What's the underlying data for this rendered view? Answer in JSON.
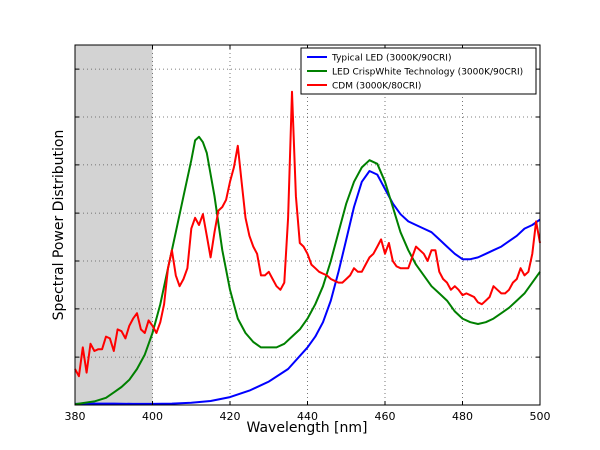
{
  "chart_data": {
    "type": "line",
    "title": "",
    "xlabel": "Wavelength [nm]",
    "ylabel": "Spectral Power Distribution",
    "xlim": [
      380,
      500
    ],
    "ylim": [
      0,
      1
    ],
    "x_ticks": [
      380,
      400,
      420,
      440,
      460,
      480,
      500
    ],
    "x_tick_labels": [
      "380",
      "400",
      "420",
      "440",
      "460",
      "480",
      "500"
    ],
    "y_gridlines": [
      0.133,
      0.267,
      0.4,
      0.533,
      0.667,
      0.8,
      0.933
    ],
    "grid": true,
    "legend_position": "top-right",
    "shaded_region": {
      "x_from": 380,
      "x_to": 400,
      "color": "#d3d3d3"
    },
    "series": [
      {
        "name": "Typical LED (3000K/90CRI)",
        "color": "#0000ff",
        "points": [
          [
            380,
            0.003
          ],
          [
            385,
            0.004
          ],
          [
            390,
            0.004
          ],
          [
            395,
            0.003
          ],
          [
            400,
            0.003
          ],
          [
            405,
            0.004
          ],
          [
            410,
            0.006
          ],
          [
            415,
            0.011
          ],
          [
            420,
            0.022
          ],
          [
            425,
            0.04
          ],
          [
            430,
            0.065
          ],
          [
            435,
            0.1
          ],
          [
            440,
            0.16
          ],
          [
            442,
            0.19
          ],
          [
            444,
            0.23
          ],
          [
            446,
            0.29
          ],
          [
            448,
            0.37
          ],
          [
            450,
            0.46
          ],
          [
            452,
            0.55
          ],
          [
            454,
            0.62
          ],
          [
            456,
            0.65
          ],
          [
            458,
            0.64
          ],
          [
            460,
            0.6
          ],
          [
            462,
            0.56
          ],
          [
            464,
            0.53
          ],
          [
            466,
            0.51
          ],
          [
            468,
            0.5
          ],
          [
            470,
            0.49
          ],
          [
            472,
            0.48
          ],
          [
            474,
            0.46
          ],
          [
            476,
            0.44
          ],
          [
            478,
            0.42
          ],
          [
            480,
            0.405
          ],
          [
            482,
            0.405
          ],
          [
            484,
            0.41
          ],
          [
            486,
            0.42
          ],
          [
            488,
            0.43
          ],
          [
            490,
            0.44
          ],
          [
            492,
            0.455
          ],
          [
            494,
            0.47
          ],
          [
            496,
            0.49
          ],
          [
            498,
            0.5
          ],
          [
            500,
            0.515
          ]
        ]
      },
      {
        "name": "LED CrispWhite Technology (3000K/90CRI)",
        "color": "#008000",
        "points": [
          [
            380,
            0.002
          ],
          [
            385,
            0.01
          ],
          [
            388,
            0.02
          ],
          [
            390,
            0.035
          ],
          [
            392,
            0.05
          ],
          [
            394,
            0.07
          ],
          [
            396,
            0.1
          ],
          [
            398,
            0.14
          ],
          [
            400,
            0.2
          ],
          [
            402,
            0.28
          ],
          [
            404,
            0.38
          ],
          [
            406,
            0.48
          ],
          [
            408,
            0.58
          ],
          [
            410,
            0.68
          ],
          [
            411,
            0.735
          ],
          [
            412,
            0.745
          ],
          [
            413,
            0.73
          ],
          [
            414,
            0.7
          ],
          [
            416,
            0.58
          ],
          [
            418,
            0.43
          ],
          [
            420,
            0.32
          ],
          [
            422,
            0.24
          ],
          [
            424,
            0.2
          ],
          [
            426,
            0.175
          ],
          [
            428,
            0.16
          ],
          [
            430,
            0.16
          ],
          [
            432,
            0.16
          ],
          [
            434,
            0.17
          ],
          [
            436,
            0.19
          ],
          [
            438,
            0.21
          ],
          [
            440,
            0.24
          ],
          [
            442,
            0.28
          ],
          [
            444,
            0.33
          ],
          [
            446,
            0.4
          ],
          [
            448,
            0.48
          ],
          [
            450,
            0.56
          ],
          [
            452,
            0.62
          ],
          [
            454,
            0.66
          ],
          [
            456,
            0.68
          ],
          [
            458,
            0.67
          ],
          [
            460,
            0.62
          ],
          [
            462,
            0.55
          ],
          [
            464,
            0.48
          ],
          [
            466,
            0.43
          ],
          [
            468,
            0.39
          ],
          [
            470,
            0.36
          ],
          [
            472,
            0.33
          ],
          [
            474,
            0.31
          ],
          [
            476,
            0.29
          ],
          [
            478,
            0.26
          ],
          [
            480,
            0.24
          ],
          [
            482,
            0.23
          ],
          [
            484,
            0.225
          ],
          [
            486,
            0.23
          ],
          [
            488,
            0.24
          ],
          [
            490,
            0.255
          ],
          [
            492,
            0.27
          ],
          [
            494,
            0.29
          ],
          [
            496,
            0.31
          ],
          [
            498,
            0.34
          ],
          [
            500,
            0.37
          ]
        ]
      },
      {
        "name": "CDM (3000K/80CRI)",
        "color": "#ff0000",
        "points": [
          [
            380,
            0.1
          ],
          [
            381,
            0.08
          ],
          [
            382,
            0.16
          ],
          [
            383,
            0.09
          ],
          [
            384,
            0.17
          ],
          [
            385,
            0.15
          ],
          [
            386,
            0.155
          ],
          [
            387,
            0.155
          ],
          [
            388,
            0.19
          ],
          [
            389,
            0.185
          ],
          [
            390,
            0.15
          ],
          [
            391,
            0.21
          ],
          [
            392,
            0.205
          ],
          [
            393,
            0.185
          ],
          [
            394,
            0.22
          ],
          [
            395,
            0.24
          ],
          [
            396,
            0.255
          ],
          [
            397,
            0.21
          ],
          [
            398,
            0.2
          ],
          [
            399,
            0.235
          ],
          [
            400,
            0.22
          ],
          [
            401,
            0.2
          ],
          [
            402,
            0.23
          ],
          [
            403,
            0.28
          ],
          [
            404,
            0.38
          ],
          [
            405,
            0.43
          ],
          [
            406,
            0.36
          ],
          [
            407,
            0.33
          ],
          [
            408,
            0.35
          ],
          [
            409,
            0.38
          ],
          [
            410,
            0.49
          ],
          [
            411,
            0.52
          ],
          [
            412,
            0.5
          ],
          [
            413,
            0.53
          ],
          [
            414,
            0.47
          ],
          [
            415,
            0.41
          ],
          [
            416,
            0.48
          ],
          [
            417,
            0.54
          ],
          [
            418,
            0.55
          ],
          [
            419,
            0.57
          ],
          [
            420,
            0.62
          ],
          [
            421,
            0.66
          ],
          [
            422,
            0.72
          ],
          [
            423,
            0.62
          ],
          [
            424,
            0.52
          ],
          [
            425,
            0.47
          ],
          [
            426,
            0.44
          ],
          [
            427,
            0.42
          ],
          [
            428,
            0.36
          ],
          [
            429,
            0.36
          ],
          [
            430,
            0.37
          ],
          [
            431,
            0.35
          ],
          [
            432,
            0.33
          ],
          [
            433,
            0.32
          ],
          [
            434,
            0.34
          ],
          [
            435,
            0.52
          ],
          [
            436,
            0.87
          ],
          [
            437,
            0.58
          ],
          [
            438,
            0.45
          ],
          [
            439,
            0.44
          ],
          [
            440,
            0.42
          ],
          [
            441,
            0.39
          ],
          [
            442,
            0.38
          ],
          [
            443,
            0.37
          ],
          [
            444,
            0.365
          ],
          [
            445,
            0.36
          ],
          [
            446,
            0.35
          ],
          [
            447,
            0.345
          ],
          [
            448,
            0.34
          ],
          [
            449,
            0.34
          ],
          [
            450,
            0.35
          ],
          [
            451,
            0.36
          ],
          [
            452,
            0.38
          ],
          [
            453,
            0.37
          ],
          [
            454,
            0.37
          ],
          [
            455,
            0.39
          ],
          [
            456,
            0.41
          ],
          [
            457,
            0.42
          ],
          [
            458,
            0.44
          ],
          [
            459,
            0.46
          ],
          [
            460,
            0.42
          ],
          [
            461,
            0.45
          ],
          [
            462,
            0.4
          ],
          [
            463,
            0.385
          ],
          [
            464,
            0.38
          ],
          [
            465,
            0.38
          ],
          [
            466,
            0.38
          ],
          [
            467,
            0.41
          ],
          [
            468,
            0.44
          ],
          [
            469,
            0.43
          ],
          [
            470,
            0.42
          ],
          [
            471,
            0.4
          ],
          [
            472,
            0.43
          ],
          [
            473,
            0.43
          ],
          [
            474,
            0.37
          ],
          [
            475,
            0.35
          ],
          [
            476,
            0.34
          ],
          [
            477,
            0.32
          ],
          [
            478,
            0.33
          ],
          [
            479,
            0.32
          ],
          [
            480,
            0.305
          ],
          [
            481,
            0.31
          ],
          [
            482,
            0.305
          ],
          [
            483,
            0.3
          ],
          [
            484,
            0.285
          ],
          [
            485,
            0.28
          ],
          [
            486,
            0.29
          ],
          [
            487,
            0.3
          ],
          [
            488,
            0.33
          ],
          [
            489,
            0.32
          ],
          [
            490,
            0.31
          ],
          [
            491,
            0.31
          ],
          [
            492,
            0.32
          ],
          [
            493,
            0.34
          ],
          [
            494,
            0.35
          ],
          [
            495,
            0.38
          ],
          [
            496,
            0.36
          ],
          [
            497,
            0.37
          ],
          [
            498,
            0.42
          ],
          [
            499,
            0.51
          ],
          [
            500,
            0.45
          ]
        ]
      }
    ]
  }
}
